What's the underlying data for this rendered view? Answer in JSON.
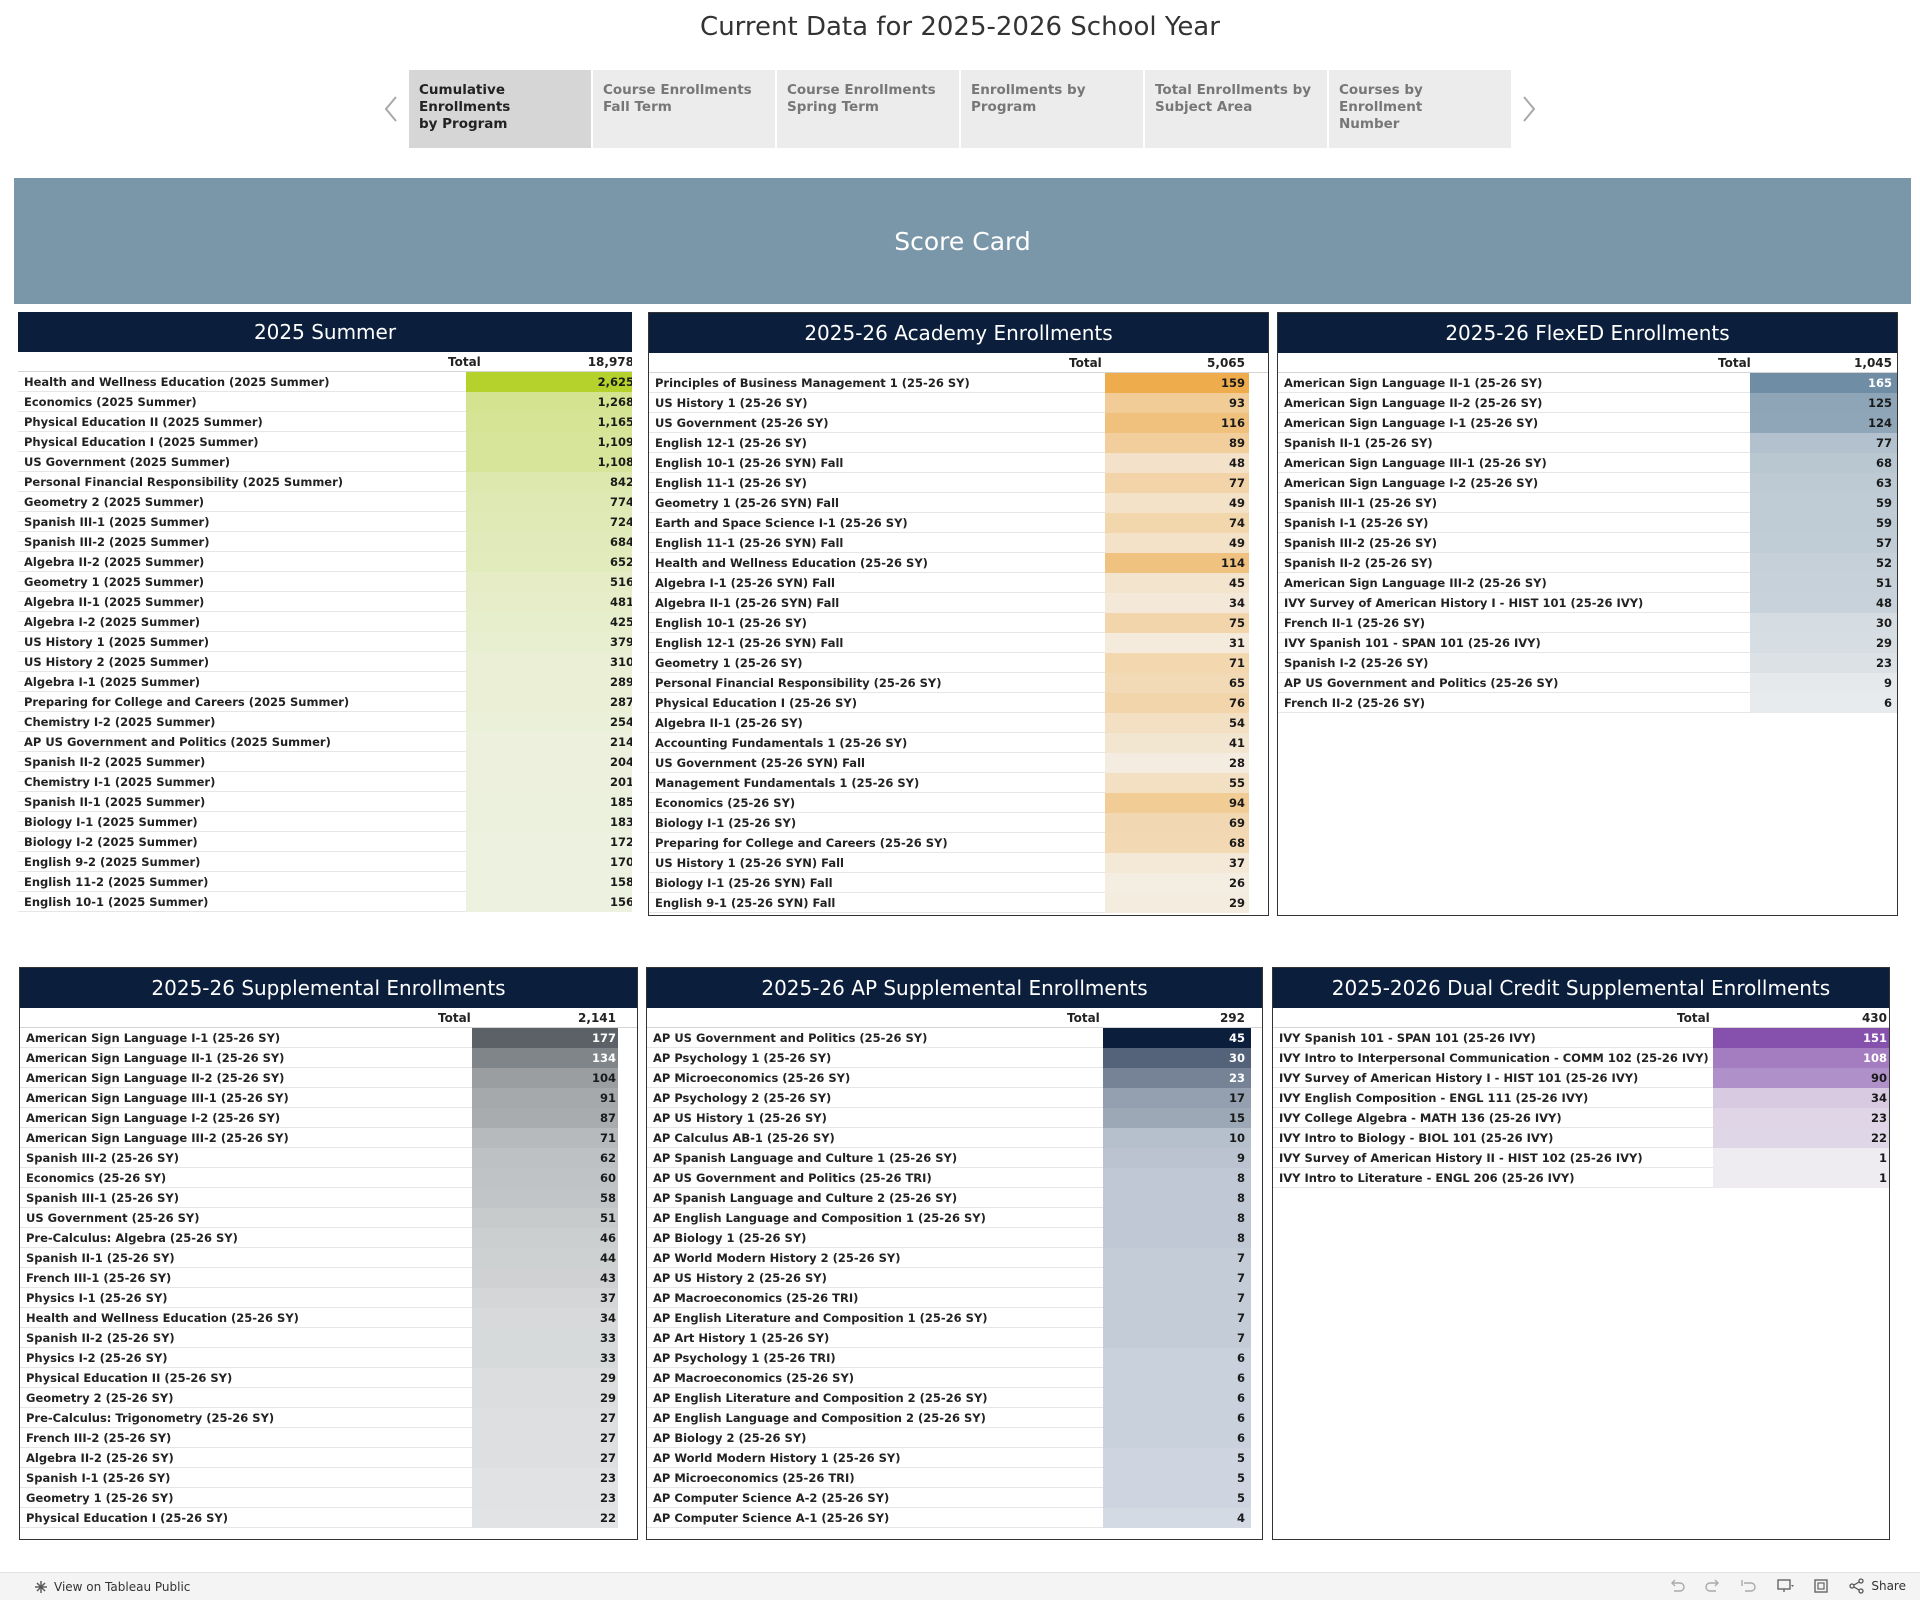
{
  "page": {
    "title": "Current Data for 2025-2026 School Year"
  },
  "tabs": [
    {
      "label": "Cumulative Enrollments\nby Program",
      "active": true
    },
    {
      "label": "Course Enrollments\nFall Term",
      "active": false
    },
    {
      "label": "Course Enrollments\nSpring Term",
      "active": false
    },
    {
      "label": "Enrollments by Program",
      "active": false
    },
    {
      "label": "Total Enrollments  by\nSubject Area",
      "active": false
    },
    {
      "label": "Courses by Enrollment\nNumber",
      "active": false
    }
  ],
  "banner": {
    "title": "Score Card"
  },
  "panels": [
    {
      "title": "2025 Summer",
      "total_label": "Total",
      "total": "18,978",
      "color_low": "#edf1e0",
      "color_high": "#b5d22c",
      "rows": [
        [
          "Health and Wellness Education (2025 Summer)",
          "2,625"
        ],
        [
          "Economics (2025 Summer)",
          "1,268"
        ],
        [
          "Physical Education II (2025 Summer)",
          "1,165"
        ],
        [
          "Physical Education I (2025 Summer)",
          "1,109"
        ],
        [
          "US Government (2025 Summer)",
          "1,108"
        ],
        [
          "Personal Financial Responsibility (2025 Summer)",
          "842"
        ],
        [
          "Geometry 2 (2025 Summer)",
          "774"
        ],
        [
          "Spanish III-1 (2025 Summer)",
          "724"
        ],
        [
          "Spanish III-2 (2025 Summer)",
          "684"
        ],
        [
          "Algebra II-2 (2025 Summer)",
          "652"
        ],
        [
          "Geometry 1 (2025 Summer)",
          "516"
        ],
        [
          "Algebra II-1 (2025 Summer)",
          "481"
        ],
        [
          "Algebra I-2 (2025 Summer)",
          "425"
        ],
        [
          "US History 1 (2025 Summer)",
          "379"
        ],
        [
          "US History 2 (2025 Summer)",
          "310"
        ],
        [
          "Algebra I-1 (2025 Summer)",
          "289"
        ],
        [
          "Preparing for College and Careers (2025 Summer)",
          "287"
        ],
        [
          "Chemistry I-2 (2025 Summer)",
          "254"
        ],
        [
          "AP US Government and Politics (2025 Summer)",
          "214"
        ],
        [
          "Spanish II-2 (2025 Summer)",
          "204"
        ],
        [
          "Chemistry I-1 (2025 Summer)",
          "201"
        ],
        [
          "Spanish II-1 (2025 Summer)",
          "185"
        ],
        [
          "Biology I-1 (2025 Summer)",
          "183"
        ],
        [
          "Biology I-2 (2025 Summer)",
          "172"
        ],
        [
          "English 9-2 (2025 Summer)",
          "170"
        ],
        [
          "English 11-2 (2025 Summer)",
          "158"
        ],
        [
          "English 10-1 (2025 Summer)",
          "156"
        ]
      ]
    },
    {
      "title": "2025-26 Academy Enrollments",
      "total_label": "Total",
      "total": "5,065",
      "color_low": "#f4ede2",
      "color_high": "#eeac4c",
      "rows": [
        [
          "Principles of Business Management 1 (25-26 SY)",
          "159"
        ],
        [
          "US History 1 (25-26 SY)",
          "93"
        ],
        [
          "US Government (25-26 SY)",
          "116"
        ],
        [
          "English 12-1 (25-26 SY)",
          "89"
        ],
        [
          "English 10-1 (25-26 SYN) Fall",
          "48"
        ],
        [
          "English 11-1 (25-26 SY)",
          "77"
        ],
        [
          "Geometry 1 (25-26 SYN) Fall",
          "49"
        ],
        [
          "Earth and Space Science I-1 (25-26 SY)",
          "74"
        ],
        [
          "English 11-1 (25-26 SYN) Fall",
          "49"
        ],
        [
          "Health and Wellness Education (25-26 SY)",
          "114"
        ],
        [
          "Algebra I-1 (25-26 SYN) Fall",
          "45"
        ],
        [
          "Algebra II-1 (25-26 SYN) Fall",
          "34"
        ],
        [
          "English 10-1 (25-26 SY)",
          "75"
        ],
        [
          "English 12-1 (25-26 SYN) Fall",
          "31"
        ],
        [
          "Geometry 1 (25-26 SY)",
          "71"
        ],
        [
          "Personal Financial Responsibility (25-26 SY)",
          "65"
        ],
        [
          "Physical Education I (25-26 SY)",
          "76"
        ],
        [
          "Algebra II-1 (25-26 SY)",
          "54"
        ],
        [
          "Accounting Fundamentals 1 (25-26 SY)",
          "41"
        ],
        [
          "US Government (25-26 SYN) Fall",
          "28"
        ],
        [
          "Management Fundamentals 1 (25-26 SY)",
          "55"
        ],
        [
          "Economics (25-26 SY)",
          "94"
        ],
        [
          "Biology I-1 (25-26 SY)",
          "69"
        ],
        [
          "Preparing for College and Careers (25-26 SY)",
          "68"
        ],
        [
          "US History 1 (25-26 SYN) Fall",
          "37"
        ],
        [
          "Biology I-1 (25-26 SYN) Fall",
          "26"
        ],
        [
          "English 9-1 (25-26 SYN) Fall",
          "29"
        ]
      ]
    },
    {
      "title": "2025-26 FlexED Enrollments",
      "total_label": "Total",
      "total": "1,045",
      "color_low": "#e8ebed",
      "color_high": "#6f8ea5",
      "rows": [
        [
          "American Sign Language II-1 (25-26 SY)",
          "165"
        ],
        [
          "American Sign Language II-2 (25-26 SY)",
          "125"
        ],
        [
          "American Sign Language I-1 (25-26 SY)",
          "124"
        ],
        [
          "Spanish II-1 (25-26 SY)",
          "77"
        ],
        [
          "American Sign Language III-1 (25-26 SY)",
          "68"
        ],
        [
          "American Sign Language I-2 (25-26 SY)",
          "63"
        ],
        [
          "Spanish III-1 (25-26 SY)",
          "59"
        ],
        [
          "Spanish I-1 (25-26 SY)",
          "59"
        ],
        [
          "Spanish III-2 (25-26 SY)",
          "57"
        ],
        [
          "Spanish II-2 (25-26 SY)",
          "52"
        ],
        [
          "American Sign Language III-2 (25-26 SY)",
          "51"
        ],
        [
          "IVY Survey of American History I - HIST 101 (25-26 IVY)",
          "48"
        ],
        [
          "French II-1 (25-26 SY)",
          "30"
        ],
        [
          "IVY Spanish 101 - SPAN 101 (25-26 IVY)",
          "29"
        ],
        [
          "Spanish I-2 (25-26 SY)",
          "23"
        ],
        [
          "AP US Government and Politics (25-26 SY)",
          "9"
        ],
        [
          "French II-2 (25-26 SY)",
          "6"
        ]
      ]
    },
    {
      "title": "2025-26 Supplemental Enrollments",
      "total_label": "Total",
      "total": "2,141",
      "color_low": "#e1e3e4",
      "color_high": "#5b6166",
      "rows": [
        [
          "American Sign Language I-1 (25-26 SY)",
          "177"
        ],
        [
          "American Sign Language II-1 (25-26 SY)",
          "134"
        ],
        [
          "American Sign Language II-2 (25-26 SY)",
          "104"
        ],
        [
          "American Sign Language III-1 (25-26 SY)",
          "91"
        ],
        [
          "American Sign Language I-2 (25-26 SY)",
          "87"
        ],
        [
          "American Sign Language III-2 (25-26 SY)",
          "71"
        ],
        [
          "Spanish III-2 (25-26 SY)",
          "62"
        ],
        [
          "Economics (25-26 SY)",
          "60"
        ],
        [
          "Spanish III-1 (25-26 SY)",
          "58"
        ],
        [
          "US Government (25-26 SY)",
          "51"
        ],
        [
          "Pre-Calculus: Algebra (25-26 SY)",
          "46"
        ],
        [
          "Spanish II-1 (25-26 SY)",
          "44"
        ],
        [
          "French III-1 (25-26 SY)",
          "43"
        ],
        [
          "Physics I-1 (25-26 SY)",
          "37"
        ],
        [
          "Health and Wellness Education (25-26 SY)",
          "34"
        ],
        [
          "Spanish II-2 (25-26 SY)",
          "33"
        ],
        [
          "Physics I-2 (25-26 SY)",
          "33"
        ],
        [
          "Physical Education II (25-26 SY)",
          "29"
        ],
        [
          "Geometry 2 (25-26 SY)",
          "29"
        ],
        [
          "Pre-Calculus: Trigonometry (25-26 SY)",
          "27"
        ],
        [
          "French III-2 (25-26 SY)",
          "27"
        ],
        [
          "Algebra II-2 (25-26 SY)",
          "27"
        ],
        [
          "Spanish I-1 (25-26 SY)",
          "23"
        ],
        [
          "Geometry 1 (25-26 SY)",
          "23"
        ],
        [
          "Physical Education I (25-26 SY)",
          "22"
        ]
      ]
    },
    {
      "title": "2025-26 AP Supplemental Enrollments",
      "total_label": "Total",
      "total": "292",
      "color_low": "#d3dae4",
      "color_high": "#0b1f3d",
      "rows": [
        [
          "AP US Government and Politics (25-26 SY)",
          "45"
        ],
        [
          "AP Psychology 1 (25-26 SY)",
          "30"
        ],
        [
          "AP Microeconomics (25-26 SY)",
          "23"
        ],
        [
          "AP Psychology 2 (25-26 SY)",
          "17"
        ],
        [
          "AP US History 1 (25-26 SY)",
          "15"
        ],
        [
          "AP Calculus AB-1 (25-26 SY)",
          "10"
        ],
        [
          "AP Spanish Language and Culture 1 (25-26 SY)",
          "9"
        ],
        [
          "AP US Government and Politics (25-26 TRI)",
          "8"
        ],
        [
          "AP Spanish Language and Culture 2 (25-26 SY)",
          "8"
        ],
        [
          "AP English Language and Composition 1 (25-26 SY)",
          "8"
        ],
        [
          "AP Biology 1 (25-26 SY)",
          "8"
        ],
        [
          "AP World Modern History 2 (25-26 SY)",
          "7"
        ],
        [
          "AP US History 2 (25-26 SY)",
          "7"
        ],
        [
          "AP Macroeconomics (25-26 TRI)",
          "7"
        ],
        [
          "AP English Literature and Composition 1 (25-26 SY)",
          "7"
        ],
        [
          "AP Art History 1 (25-26 SY)",
          "7"
        ],
        [
          "AP Psychology 1 (25-26 TRI)",
          "6"
        ],
        [
          "AP Macroeconomics (25-26 SY)",
          "6"
        ],
        [
          "AP English Literature and Composition 2 (25-26 SY)",
          "6"
        ],
        [
          "AP English Language and Composition 2 (25-26 SY)",
          "6"
        ],
        [
          "AP Biology 2 (25-26 SY)",
          "6"
        ],
        [
          "AP World Modern History 1 (25-26 SY)",
          "5"
        ],
        [
          "AP Microeconomics (25-26 TRI)",
          "5"
        ],
        [
          "AP Computer Science A-2 (25-26 SY)",
          "5"
        ],
        [
          "AP Computer Science A-1 (25-26 SY)",
          "4"
        ]
      ]
    },
    {
      "title": "2025-2026 Dual Credit Supplemental Enrollments",
      "total_label": "Total",
      "total": "430",
      "color_low": "#eeecf0",
      "color_high": "#8651ad",
      "rows": [
        [
          "IVY Spanish 101 - SPAN 101 (25-26 IVY)",
          "151"
        ],
        [
          "IVY Intro to Interpersonal Communication - COMM 102 (25-26 IVY)",
          "108"
        ],
        [
          "IVY Survey of American History I - HIST 101 (25-26 IVY)",
          "90"
        ],
        [
          "IVY English Composition - ENGL 111 (25-26 IVY)",
          "34"
        ],
        [
          "IVY College Algebra - MATH 136 (25-26 IVY)",
          "23"
        ],
        [
          "IVY Intro to Biology - BIOL 101 (25-26 IVY)",
          "22"
        ],
        [
          "IVY Survey of American History II - HIST 102 (25-26 IVY)",
          "1"
        ],
        [
          "IVY Intro to Literature - ENGL 206 (25-26 IVY)",
          "1"
        ]
      ]
    }
  ],
  "footer": {
    "link_label": "View on Tableau Public",
    "share_label": "Share"
  },
  "icons": [
    "chevron-left-icon",
    "chevron-right-icon",
    "tableau-logo-icon",
    "undo-icon",
    "redo-icon",
    "revert-icon",
    "present-icon",
    "fullscreen-icon",
    "share-icon"
  ]
}
